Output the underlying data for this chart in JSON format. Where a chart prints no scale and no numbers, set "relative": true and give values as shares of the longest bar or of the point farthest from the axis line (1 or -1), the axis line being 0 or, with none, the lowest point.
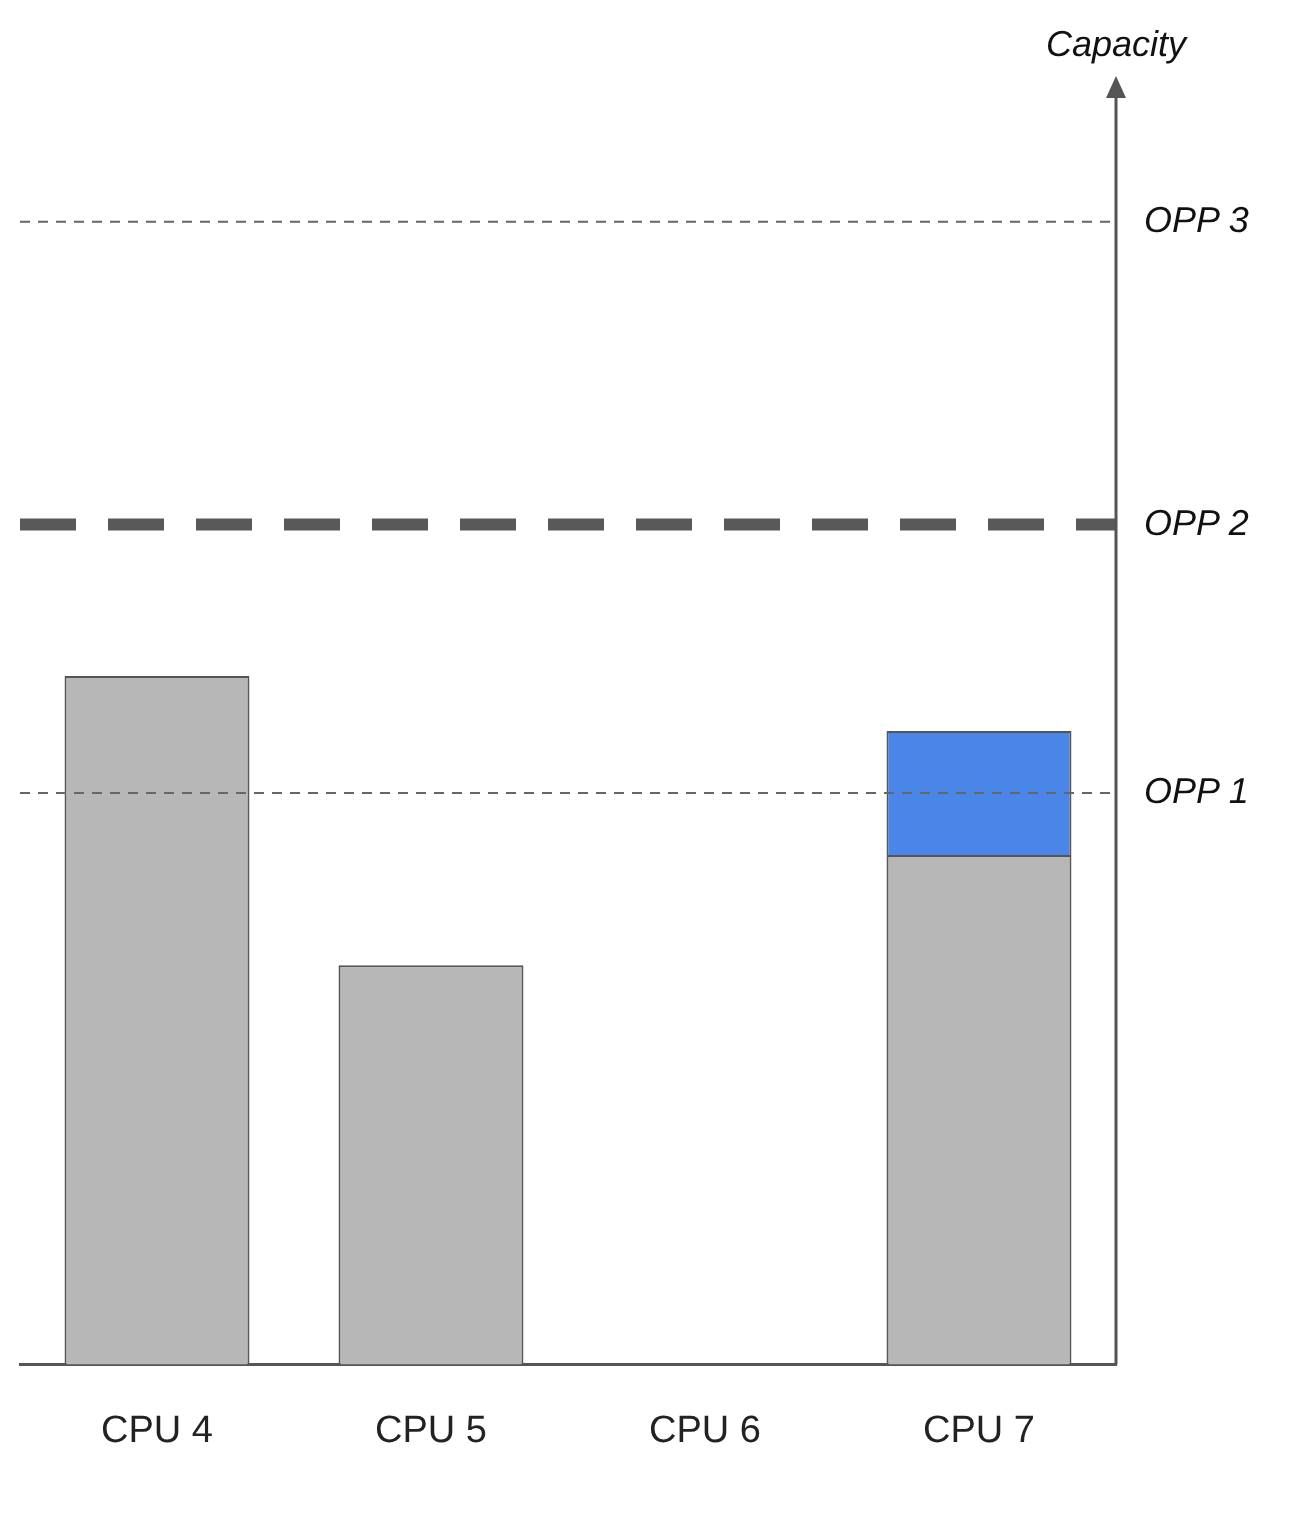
{
  "chart_data": {
    "type": "bar",
    "relative": true,
    "stacked": true,
    "annotations": [
      "Capacity"
    ],
    "categories": [
      "CPU 4",
      "CPU 5",
      "CPU 6",
      "CPU 7"
    ],
    "series": [
      {
        "color": "#b7b7b7",
        "values": [
          1,
          0.58,
          0,
          0.74
        ]
      },
      {
        "color": "#4a86e8",
        "values": [
          null,
          null,
          null,
          0.18
        ]
      }
    ],
    "ref_lines": [
      {
        "axis": "y",
        "value": 0.83,
        "label": "OPP 1",
        "line_style": "dashed",
        "color": "#666666"
      },
      {
        "axis": "y",
        "value": 1.22,
        "label": "OPP 2",
        "line_style": "dashed",
        "color": "#595959"
      },
      {
        "axis": "y",
        "value": 1.66,
        "label": "OPP 3",
        "line_style": "dashed",
        "color": "#666666"
      }
    ],
    "grid": false,
    "legend": false
  }
}
